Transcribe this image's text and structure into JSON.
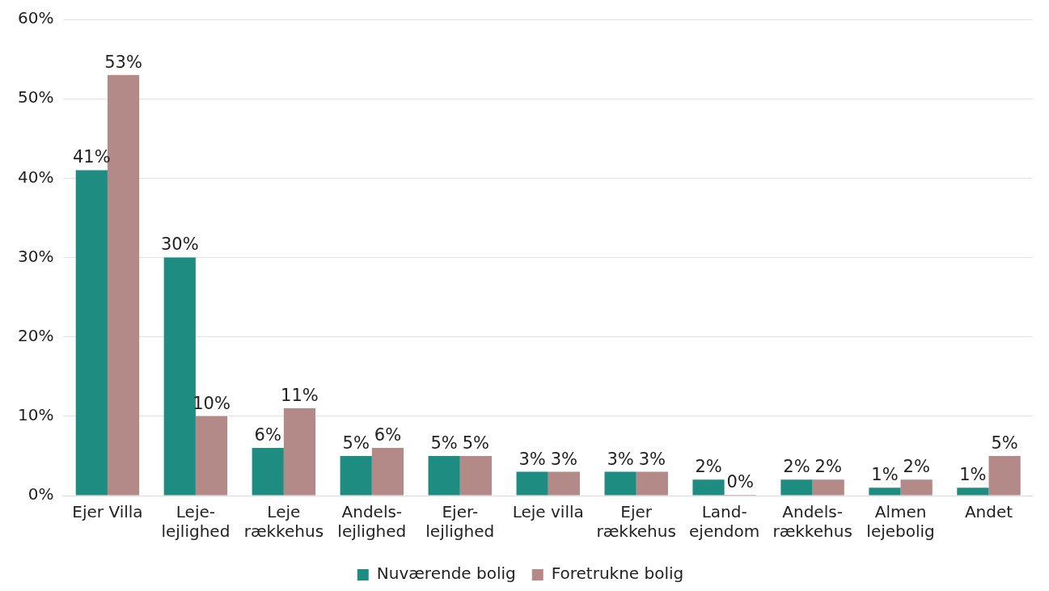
{
  "chart_data": {
    "type": "bar",
    "categories": [
      "Ejer Villa",
      "Leje-\nlejlighed",
      "Leje\nrækkehus",
      "Andels-\nlejlighed",
      "Ejer-\nlejlighed",
      "Leje villa",
      "Ejer\nrækkehus",
      "Land-\nejendom",
      "Andels-\nrækkehus",
      "Almen\nlejebolig",
      "Andet"
    ],
    "series": [
      {
        "name": "Nuværende bolig",
        "color": "#1e8c80",
        "values": [
          41,
          30,
          6,
          5,
          5,
          3,
          3,
          2,
          2,
          1,
          1
        ],
        "value_labels": [
          "41%",
          "30%",
          "6%",
          "5%",
          "5%",
          "3%",
          "3%",
          "2%",
          "2%",
          "1%",
          "1%"
        ]
      },
      {
        "name": "Foretrukne bolig",
        "color": "#b48a88",
        "values": [
          53,
          10,
          11,
          6,
          5,
          3,
          3,
          0,
          2,
          2,
          5
        ],
        "value_labels": [
          "53%",
          "10%",
          "11%",
          "6%",
          "5%",
          "3%",
          "3%",
          "0%",
          "2%",
          "2%",
          "5%"
        ]
      }
    ],
    "ylim": [
      0,
      60
    ],
    "yticks": [
      {
        "value": 0,
        "label": "0%"
      },
      {
        "value": 10,
        "label": "10%"
      },
      {
        "value": 20,
        "label": "20%"
      },
      {
        "value": 30,
        "label": "30%"
      },
      {
        "value": 40,
        "label": "40%"
      },
      {
        "value": 50,
        "label": "50%"
      },
      {
        "value": 60,
        "label": "60%"
      }
    ],
    "grid": "y",
    "legend": "bottom"
  }
}
